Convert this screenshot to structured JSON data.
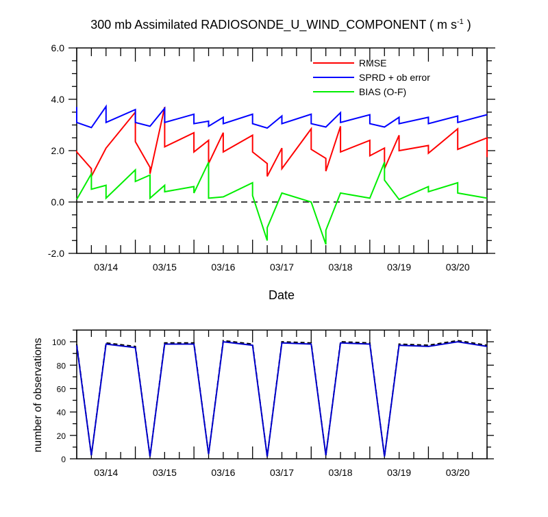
{
  "colors": {
    "rmse": "#ff0000",
    "sprd": "#0000ff",
    "bias": "#00ee00",
    "obs_poss": "#0000cc",
    "obs_used": "#000000"
  },
  "title_main": "300 mb Assimilated RADIOSONDE_U_WIND_COMPONENT ( m s",
  "title_sup": "-1",
  "title_end": " )",
  "chart_data": [
    {
      "type": "line",
      "title": "300 mb Assimilated RADIOSONDE_U_WIND_COMPONENT ( m s-1 )",
      "xlabel": "Date",
      "ylabel": "",
      "xlim": [
        0.5,
        7.5
      ],
      "ylim": [
        -2.0,
        6.0
      ],
      "xticks": [
        {
          "x": 1,
          "label": "03/14"
        },
        {
          "x": 2,
          "label": "03/15"
        },
        {
          "x": 3,
          "label": "03/16"
        },
        {
          "x": 4,
          "label": "03/17"
        },
        {
          "x": 5,
          "label": "03/18"
        },
        {
          "x": 6,
          "label": "03/19"
        },
        {
          "x": 7,
          "label": "03/20"
        }
      ],
      "yticks": [
        {
          "y": -2.0,
          "label": "-2.0"
        },
        {
          "y": 0.0,
          "label": "0.0"
        },
        {
          "y": 2.0,
          "label": "2.0"
        },
        {
          "y": 4.0,
          "label": "4.0"
        },
        {
          "y": 6.0,
          "label": "6.0"
        }
      ],
      "zero_line": "dashed",
      "legend": "top-right",
      "series": [
        {
          "name": "RMSE",
          "color": "#ff0000",
          "points": [
            [
              0.5,
              2.0
            ],
            [
              0.5,
              1.95
            ],
            [
              0.75,
              1.3
            ],
            [
              0.75,
              1.0
            ],
            [
              1.0,
              2.1
            ],
            [
              1.5,
              3.5
            ],
            [
              1.5,
              2.35
            ],
            [
              1.75,
              1.35
            ],
            [
              1.75,
              1.1
            ],
            [
              2.0,
              3.7
            ],
            [
              2.0,
              2.15
            ],
            [
              2.5,
              2.7
            ],
            [
              2.5,
              1.95
            ],
            [
              2.75,
              2.4
            ],
            [
              2.75,
              1.5
            ],
            [
              3.0,
              2.7
            ],
            [
              3.0,
              1.95
            ],
            [
              3.5,
              2.6
            ],
            [
              3.5,
              1.95
            ],
            [
              3.75,
              1.5
            ],
            [
              3.75,
              1.0
            ],
            [
              4.0,
              2.1
            ],
            [
              4.0,
              1.3
            ],
            [
              4.5,
              2.85
            ],
            [
              4.5,
              2.05
            ],
            [
              4.75,
              1.7
            ],
            [
              4.75,
              1.2
            ],
            [
              5.0,
              2.95
            ],
            [
              5.0,
              1.95
            ],
            [
              5.5,
              2.4
            ],
            [
              5.5,
              1.8
            ],
            [
              5.75,
              2.1
            ],
            [
              5.75,
              1.3
            ],
            [
              6.0,
              2.6
            ],
            [
              6.0,
              2.0
            ],
            [
              6.5,
              2.2
            ],
            [
              6.5,
              1.9
            ],
            [
              7.0,
              2.85
            ],
            [
              7.0,
              2.05
            ],
            [
              7.5,
              2.5
            ],
            [
              7.5,
              1.75
            ]
          ]
        },
        {
          "name": "SPRD + ob error",
          "color": "#0000ff",
          "points": [
            [
              0.5,
              3.7
            ],
            [
              0.5,
              3.1
            ],
            [
              0.75,
              2.9
            ],
            [
              1.0,
              3.72
            ],
            [
              1.0,
              3.1
            ],
            [
              1.5,
              3.6
            ],
            [
              1.5,
              3.1
            ],
            [
              1.75,
              2.95
            ],
            [
              2.0,
              3.65
            ],
            [
              2.0,
              3.1
            ],
            [
              2.5,
              3.42
            ],
            [
              2.5,
              3.05
            ],
            [
              2.75,
              3.15
            ],
            [
              2.75,
              2.95
            ],
            [
              3.0,
              3.3
            ],
            [
              3.0,
              3.05
            ],
            [
              3.5,
              3.42
            ],
            [
              3.5,
              3.05
            ],
            [
              3.75,
              2.88
            ],
            [
              4.0,
              3.35
            ],
            [
              4.0,
              3.05
            ],
            [
              4.5,
              3.42
            ],
            [
              4.5,
              3.05
            ],
            [
              4.75,
              2.92
            ],
            [
              5.0,
              3.48
            ],
            [
              5.0,
              3.1
            ],
            [
              5.5,
              3.4
            ],
            [
              5.5,
              3.05
            ],
            [
              5.75,
              2.92
            ],
            [
              6.0,
              3.3
            ],
            [
              6.0,
              3.05
            ],
            [
              6.5,
              3.3
            ],
            [
              6.5,
              3.05
            ],
            [
              7.0,
              3.35
            ],
            [
              7.0,
              3.1
            ],
            [
              7.5,
              3.4
            ]
          ]
        },
        {
          "name": "BIAS (O-F)",
          "color": "#00ee00",
          "points": [
            [
              0.5,
              0.1
            ],
            [
              0.75,
              1.1
            ],
            [
              0.75,
              0.5
            ],
            [
              1.0,
              0.65
            ],
            [
              1.0,
              0.15
            ],
            [
              1.5,
              1.25
            ],
            [
              1.5,
              0.8
            ],
            [
              1.75,
              1.05
            ],
            [
              1.75,
              0.15
            ],
            [
              2.0,
              0.65
            ],
            [
              2.0,
              0.4
            ],
            [
              2.5,
              0.6
            ],
            [
              2.5,
              0.35
            ],
            [
              2.75,
              1.55
            ],
            [
              2.75,
              0.15
            ],
            [
              3.0,
              0.2
            ],
            [
              3.5,
              0.75
            ],
            [
              3.5,
              0.25
            ],
            [
              3.75,
              -1.5
            ],
            [
              3.75,
              -1.0
            ],
            [
              4.0,
              0.35
            ],
            [
              4.5,
              0.0
            ],
            [
              4.75,
              -1.65
            ],
            [
              4.75,
              -1.1
            ],
            [
              5.0,
              0.35
            ],
            [
              5.5,
              0.15
            ],
            [
              5.75,
              1.55
            ],
            [
              5.75,
              0.85
            ],
            [
              6.0,
              0.1
            ],
            [
              6.5,
              0.6
            ],
            [
              6.5,
              0.4
            ],
            [
              7.0,
              0.75
            ],
            [
              7.0,
              0.35
            ],
            [
              7.5,
              0.15
            ]
          ]
        }
      ]
    },
    {
      "type": "line",
      "title": "",
      "xlabel": "",
      "ylabel": "number of observations",
      "xlim": [
        0.5,
        7.5
      ],
      "ylim": [
        0,
        110
      ],
      "xticks": [
        {
          "x": 1,
          "label": "03/14"
        },
        {
          "x": 2,
          "label": "03/15"
        },
        {
          "x": 3,
          "label": "03/16"
        },
        {
          "x": 4,
          "label": "03/17"
        },
        {
          "x": 5,
          "label": "03/18"
        },
        {
          "x": 6,
          "label": "03/19"
        },
        {
          "x": 7,
          "label": "03/20"
        }
      ],
      "yticks": [
        {
          "y": 0,
          "label": "0"
        },
        {
          "y": 20,
          "label": "20"
        },
        {
          "y": 40,
          "label": "40"
        },
        {
          "y": 60,
          "label": "60"
        },
        {
          "y": 80,
          "label": "80"
        },
        {
          "y": 100,
          "label": "100"
        }
      ],
      "series": [
        {
          "color": "#000000",
          "dash": true,
          "points": [
            [
              0.5,
              98
            ],
            [
              0.75,
              3
            ],
            [
              1.0,
              99
            ],
            [
              1.5,
              96
            ],
            [
              1.75,
              2
            ],
            [
              2.0,
              99
            ],
            [
              2.5,
              99
            ],
            [
              2.75,
              4
            ],
            [
              3.0,
              101
            ],
            [
              3.5,
              98
            ],
            [
              3.75,
              2
            ],
            [
              4.0,
              100
            ],
            [
              4.5,
              99
            ],
            [
              4.75,
              3
            ],
            [
              5.0,
              100
            ],
            [
              5.5,
              99
            ],
            [
              5.75,
              2
            ],
            [
              6.0,
              98
            ],
            [
              6.5,
              97
            ],
            [
              7.0,
              101
            ],
            [
              7.5,
              97
            ]
          ]
        },
        {
          "color": "#0000cc",
          "dash": false,
          "points": [
            [
              0.5,
              97
            ],
            [
              0.75,
              3
            ],
            [
              1.0,
              98
            ],
            [
              1.5,
              95
            ],
            [
              1.75,
              2
            ],
            [
              2.0,
              98
            ],
            [
              2.5,
              98
            ],
            [
              2.75,
              4
            ],
            [
              3.0,
              100
            ],
            [
              3.5,
              97
            ],
            [
              3.75,
              2
            ],
            [
              4.0,
              99
            ],
            [
              4.5,
              98
            ],
            [
              4.75,
              3
            ],
            [
              5.0,
              99
            ],
            [
              5.5,
              98
            ],
            [
              5.75,
              2
            ],
            [
              6.0,
              97
            ],
            [
              6.5,
              96
            ],
            [
              7.0,
              100
            ],
            [
              7.5,
              96
            ]
          ]
        }
      ]
    }
  ]
}
